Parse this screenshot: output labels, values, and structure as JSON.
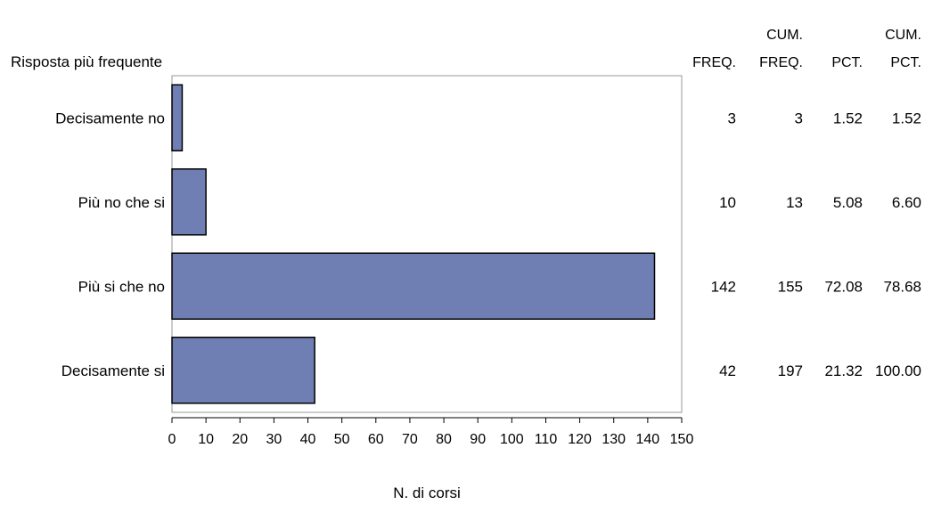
{
  "chart_data": {
    "type": "bar",
    "orientation": "horizontal",
    "ylabel": "Risposta più frequente",
    "xlabel": "N. di corsi",
    "categories": [
      "Decisamente no",
      "Più no che si",
      "Più si che no",
      "Decisamente si"
    ],
    "values": [
      3,
      10,
      142,
      42
    ],
    "xlim": [
      0,
      150
    ],
    "xticks": [
      0,
      10,
      20,
      30,
      40,
      50,
      60,
      70,
      80,
      90,
      100,
      110,
      120,
      130,
      140,
      150
    ],
    "grid": false,
    "bar_color": "#6f7fb4",
    "table": {
      "columns": [
        {
          "top": "",
          "bottom": "FREQ."
        },
        {
          "top": "CUM.",
          "bottom": "FREQ."
        },
        {
          "top": "",
          "bottom": "PCT."
        },
        {
          "top": "CUM.",
          "bottom": "PCT."
        }
      ],
      "rows": [
        [
          "3",
          "3",
          "1.52",
          "1.52"
        ],
        [
          "10",
          "13",
          "5.08",
          "6.60"
        ],
        [
          "142",
          "155",
          "72.08",
          "78.68"
        ],
        [
          "42",
          "197",
          "21.32",
          "100.00"
        ]
      ]
    }
  }
}
